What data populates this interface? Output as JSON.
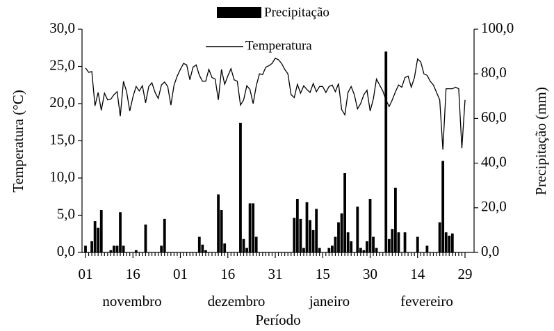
{
  "chart_data": {
    "type": "bar-line",
    "x_label": "Período",
    "y_label": "Temperatura (°C)",
    "y2_label": "Precipitação (mm)",
    "categories": [
      "01",
      null,
      null,
      null,
      null,
      null,
      null,
      null,
      null,
      null,
      null,
      null,
      null,
      null,
      null,
      "16",
      null,
      null,
      null,
      null,
      null,
      null,
      null,
      null,
      null,
      null,
      null,
      null,
      null,
      null,
      "01",
      null,
      null,
      null,
      null,
      null,
      null,
      null,
      null,
      null,
      null,
      null,
      null,
      null,
      null,
      "16",
      null,
      null,
      null,
      null,
      null,
      null,
      null,
      null,
      null,
      null,
      null,
      null,
      null,
      null,
      "31",
      null,
      null,
      null,
      null,
      null,
      null,
      null,
      null,
      null,
      null,
      null,
      null,
      null,
      null,
      "15",
      null,
      null,
      null,
      null,
      null,
      null,
      null,
      null,
      null,
      null,
      null,
      null,
      null,
      null,
      "30",
      null,
      null,
      null,
      null,
      null,
      null,
      null,
      null,
      null,
      null,
      null,
      null,
      null,
      null,
      "14",
      null,
      null,
      null,
      null,
      null,
      null,
      null,
      null,
      null,
      null,
      null,
      null,
      null,
      null,
      "29"
    ],
    "month_labels": [
      "novembro",
      "dezembro",
      "janeiro",
      "fevereiro"
    ],
    "series": [
      {
        "name": "Precipitação",
        "type": "bar",
        "axis": "y2",
        "color": "#000000",
        "values": [
          3,
          0,
          5,
          14,
          11,
          19,
          0,
          0,
          1,
          3,
          3,
          18,
          3,
          0,
          0,
          0,
          1,
          0,
          0,
          12.5,
          0,
          0,
          0,
          0,
          3,
          15,
          0,
          0,
          0,
          0,
          0,
          0,
          0,
          0,
          0,
          0,
          7,
          3.5,
          1,
          0,
          0,
          0,
          26,
          19,
          4,
          0,
          0,
          0,
          0,
          58,
          6,
          2,
          22,
          22,
          7,
          0,
          0,
          0,
          0,
          0,
          0,
          0,
          0,
          0,
          0,
          0,
          15.5,
          24,
          15,
          2,
          22.5,
          14.5,
          10,
          19.5,
          2,
          0,
          0,
          2,
          3,
          7,
          13.5,
          17.5,
          35.5,
          9,
          5,
          0,
          20.5,
          2,
          1,
          5,
          24,
          7,
          2,
          0,
          0,
          90,
          6,
          10.5,
          29,
          9,
          0,
          9,
          0,
          0,
          0,
          7,
          0,
          0,
          3,
          0,
          0,
          0,
          13.5,
          41,
          9,
          7.5,
          8.5,
          0,
          0,
          0,
          0
        ]
      },
      {
        "name": "Temperatura",
        "type": "line",
        "axis": "y",
        "color": "#000000",
        "values": [
          24.8,
          24.2,
          24.3,
          19.7,
          21.5,
          19.1,
          21.4,
          20.5,
          20.6,
          21.2,
          21.6,
          18.3,
          23.0,
          21.6,
          19.0,
          20.9,
          22.3,
          21.7,
          22.4,
          20.1,
          22.3,
          22.8,
          21.5,
          20.7,
          22.5,
          22.9,
          22.3,
          19.8,
          22.5,
          23.7,
          24.6,
          25.4,
          25.2,
          23.2,
          24.9,
          25.2,
          23.8,
          23.0,
          23.0,
          24.6,
          23.5,
          23.3,
          20.5,
          24.6,
          22.6,
          23.7,
          24.7,
          23.2,
          23.0,
          19.8,
          20.5,
          22.4,
          21.9,
          20.0,
          22.4,
          24.0,
          23.9,
          24.9,
          25.1,
          25.4,
          26.1,
          25.9,
          25.4,
          24.6,
          24.0,
          21.2,
          20.8,
          22.6,
          21.4,
          22.4,
          21.9,
          21.5,
          22.7,
          21.6,
          22.3,
          22.3,
          21.5,
          22.3,
          22.5,
          21.6,
          22.7,
          19.2,
          18.5,
          21.5,
          22.3,
          21.2,
          19.3,
          20.0,
          21.2,
          21.8,
          19.0,
          20.6,
          23.3,
          22.5,
          21.7,
          20.5,
          19.6,
          20.5,
          21.6,
          22.5,
          22.2,
          23.5,
          23.7,
          22.2,
          23.5,
          26.0,
          25.6,
          24.0,
          23.8,
          23.0,
          22.5,
          21.5,
          20.5,
          13.8,
          22.0,
          22.0,
          22.0,
          22.2,
          22.0,
          14.0,
          20.5
        ]
      }
    ],
    "ylim": [
      0,
      30
    ],
    "yticks": [
      {
        "value": 0,
        "label": "0,0"
      },
      {
        "value": 5,
        "label": "5,0"
      },
      {
        "value": 10,
        "label": "10,0"
      },
      {
        "value": 15,
        "label": "15,0"
      },
      {
        "value": 20,
        "label": "20,0"
      },
      {
        "value": 25,
        "label": "25,0"
      },
      {
        "value": 30,
        "label": "30,0"
      }
    ],
    "y2lim": [
      0,
      100
    ],
    "y2ticks": [
      {
        "value": 0,
        "label": "0,0"
      },
      {
        "value": 20,
        "label": "20,0"
      },
      {
        "value": 40,
        "label": "40,0"
      },
      {
        "value": 60,
        "label": "60,0"
      },
      {
        "value": 80,
        "label": "80,0"
      },
      {
        "value": 100,
        "label": "100,0"
      }
    ],
    "grid": false
  }
}
